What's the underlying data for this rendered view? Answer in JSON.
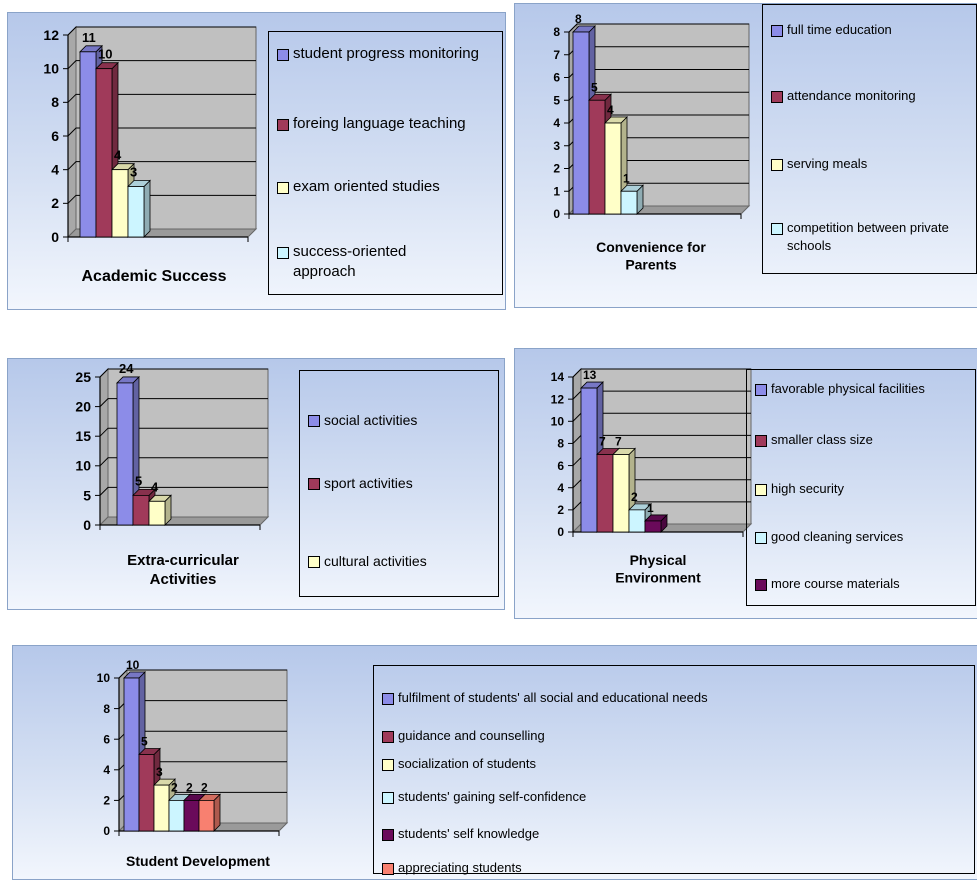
{
  "charts": [
    {
      "type": "bar",
      "title": "Academic Success",
      "ylim": [
        0,
        12
      ],
      "yticks": [
        0,
        2,
        4,
        6,
        8,
        10,
        12
      ],
      "series": [
        {
          "name": "student progress monitoring",
          "value": 11,
          "label": "11",
          "color": "#8c8ce8"
        },
        {
          "name": "foreing language teaching",
          "value": 10,
          "label": "10",
          "color": "#a03a5a"
        },
        {
          "name": "exam oriented studies",
          "value": 4,
          "label": "4",
          "color": "#ffffc8"
        },
        {
          "name": "success-oriented approach",
          "value": 3,
          "label": "3",
          "color": "#ccf5ff"
        }
      ]
    },
    {
      "type": "bar",
      "title": "Convenience for Parents",
      "ylim": [
        0,
        8
      ],
      "yticks": [
        0,
        1,
        2,
        3,
        4,
        5,
        6,
        7,
        8
      ],
      "series": [
        {
          "name": "full time education",
          "value": 8,
          "label": "8",
          "color": "#8c8ce8"
        },
        {
          "name": "attendance monitoring",
          "value": 5,
          "label": "5",
          "color": "#a03a5a"
        },
        {
          "name": "serving meals",
          "value": 4,
          "label": "4",
          "color": "#ffffc8"
        },
        {
          "name": "competition between private schools",
          "value": 1,
          "label": "1",
          "color": "#ccf5ff"
        }
      ]
    },
    {
      "type": "bar",
      "title": "Extra-curricular Activities",
      "ylim": [
        0,
        25
      ],
      "yticks": [
        0,
        5,
        10,
        15,
        20,
        25
      ],
      "series": [
        {
          "name": "social activities",
          "value": 24,
          "label": "24",
          "color": "#8c8ce8"
        },
        {
          "name": "sport activities",
          "value": 5,
          "label": "5",
          "color": "#a03a5a"
        },
        {
          "name": "cultural activities",
          "value": 4,
          "label": "4",
          "color": "#ffffc8"
        }
      ]
    },
    {
      "type": "bar",
      "title": "Physical Environment",
      "ylim": [
        0,
        14
      ],
      "yticks": [
        0,
        2,
        4,
        6,
        8,
        10,
        12,
        14
      ],
      "series": [
        {
          "name": "favorable physical facilities",
          "value": 13,
          "label": "13",
          "color": "#8c8ce8"
        },
        {
          "name": "smaller class size",
          "value": 7,
          "label": "7",
          "color": "#a03a5a"
        },
        {
          "name": "high security",
          "value": 7,
          "label": "7",
          "color": "#ffffc8"
        },
        {
          "name": "good cleaning services",
          "value": 2,
          "label": "2",
          "color": "#ccf5ff"
        },
        {
          "name": "more course materials",
          "value": 1,
          "label": "1",
          "color": "#6a0a5a"
        }
      ]
    },
    {
      "type": "bar",
      "title": "Student Development",
      "ylim": [
        0,
        10
      ],
      "yticks": [
        0,
        2,
        4,
        6,
        8,
        10
      ],
      "series": [
        {
          "name": "fulfilment of students' all social and educational needs",
          "value": 10,
          "label": "10",
          "color": "#8c8ce8"
        },
        {
          "name": "guidance and counselling",
          "value": 5,
          "label": "5",
          "color": "#a03a5a"
        },
        {
          "name": "socialization of students",
          "value": 3,
          "label": "3",
          "color": "#ffffc8"
        },
        {
          "name": "students' gaining self-confidence",
          "value": 2,
          "label": "2",
          "color": "#ccf5ff"
        },
        {
          "name": "students' self knowledge",
          "value": 2,
          "label": "2",
          "color": "#6a0a5a"
        },
        {
          "name": "appreciating students",
          "value": 2,
          "label": "2",
          "color": "#f88070"
        }
      ]
    }
  ],
  "chart_data": [
    {
      "type": "bar",
      "title": "Academic Success",
      "categories": [
        "student progress monitoring",
        "foreing language teaching",
        "exam oriented studies",
        "success-oriented approach"
      ],
      "values": [
        11,
        10,
        4,
        3
      ],
      "ylim": [
        0,
        12
      ],
      "grid": true,
      "legend": "right"
    },
    {
      "type": "bar",
      "title": "Convenience for Parents",
      "categories": [
        "full time education",
        "attendance monitoring",
        "serving meals",
        "competition between private schools"
      ],
      "values": [
        8,
        5,
        4,
        1
      ],
      "ylim": [
        0,
        8
      ],
      "grid": true,
      "legend": "right"
    },
    {
      "type": "bar",
      "title": "Extra-curricular Activities",
      "categories": [
        "social activities",
        "sport activities",
        "cultural activities"
      ],
      "values": [
        24,
        5,
        4
      ],
      "ylim": [
        0,
        25
      ],
      "grid": true,
      "legend": "right"
    },
    {
      "type": "bar",
      "title": "Physical Environment",
      "categories": [
        "favorable physical facilities",
        "smaller class size",
        "high security",
        "good cleaning services",
        "more course materials"
      ],
      "values": [
        13,
        7,
        7,
        2,
        1
      ],
      "ylim": [
        0,
        14
      ],
      "grid": true,
      "legend": "right"
    },
    {
      "type": "bar",
      "title": "Student Development",
      "categories": [
        "fulfilment of students' all social and educational needs",
        "guidance and counselling",
        "socialization of students",
        "students' gaining self-confidence",
        "students' self knowledge",
        "appreciating students"
      ],
      "values": [
        10,
        5,
        3,
        2,
        2,
        2
      ],
      "ylim": [
        0,
        10
      ],
      "grid": true,
      "legend": "right"
    }
  ]
}
